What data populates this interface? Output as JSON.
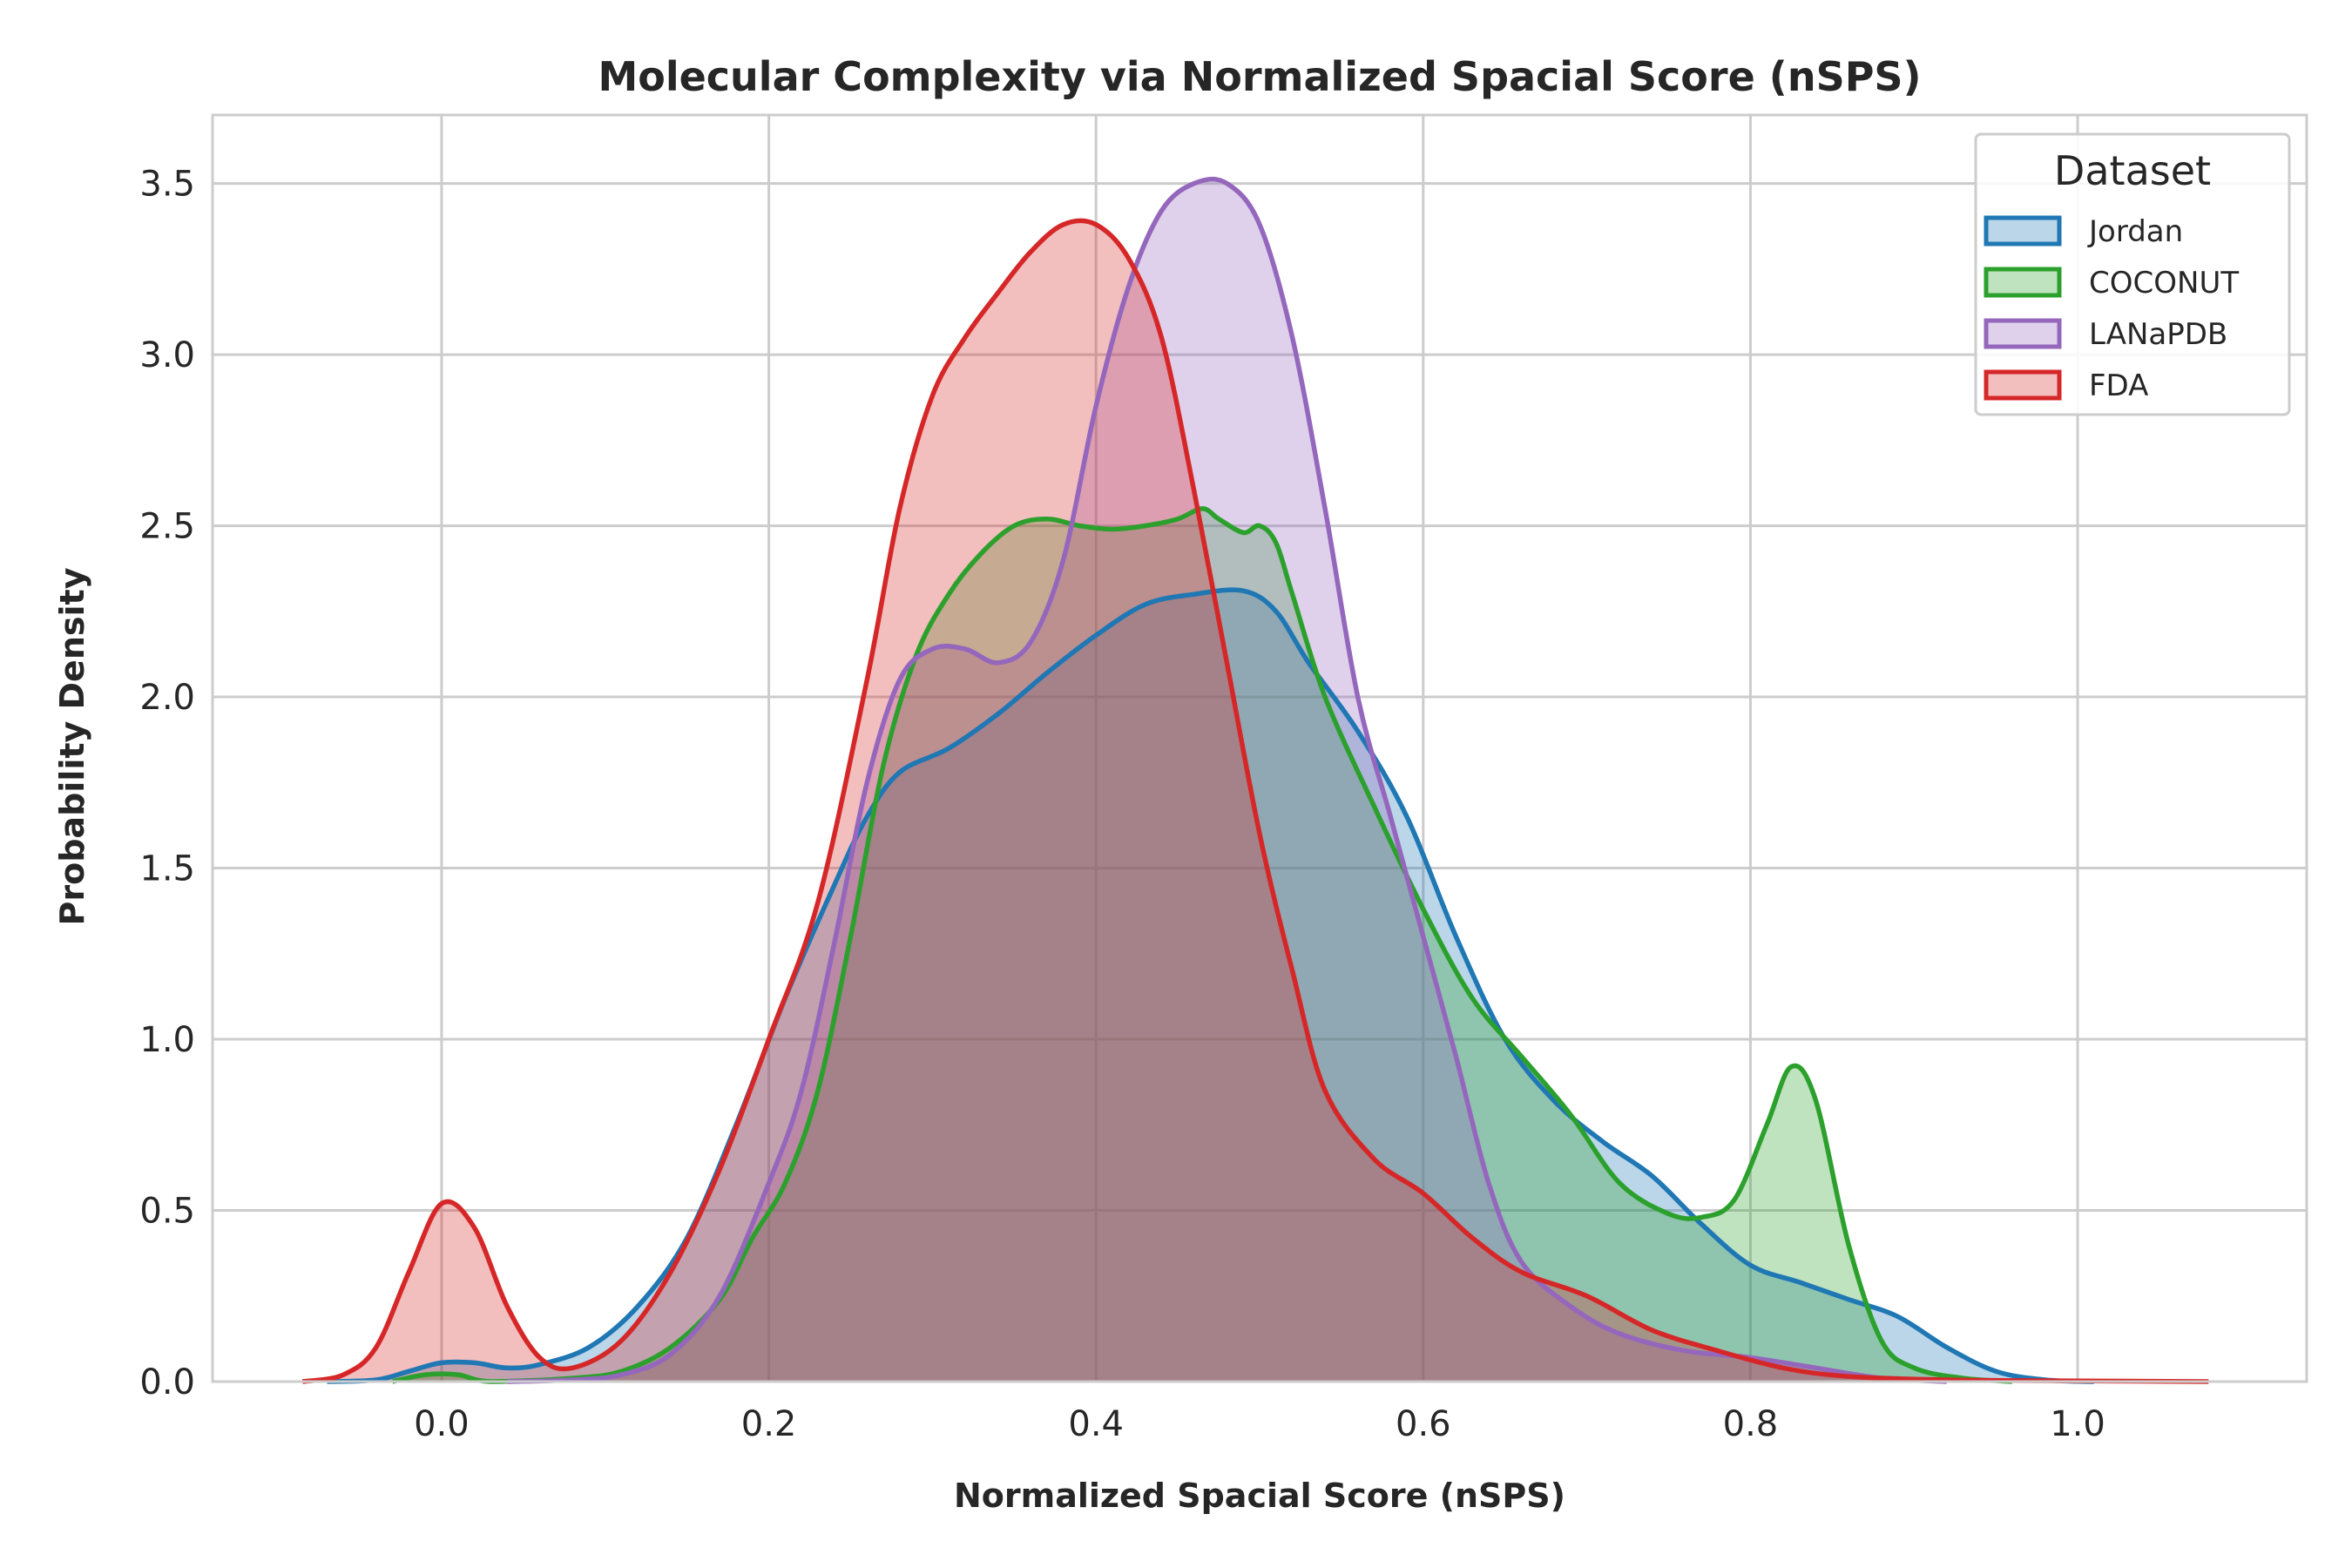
{
  "chart_data": {
    "type": "area",
    "title": "Molecular Complexity via Normalized Spacial Score (nSPS)",
    "xlabel": "Normalized Spacial Score (nSPS)",
    "ylabel": "Probability Density",
    "xlim": [
      -0.14,
      1.14
    ],
    "ylim": [
      0,
      3.7
    ],
    "xticks": [
      0.0,
      0.2,
      0.4,
      0.6,
      0.8,
      1.0
    ],
    "xtick_labels": [
      "0.0",
      "0.2",
      "0.4",
      "0.6",
      "0.8",
      "1.0"
    ],
    "yticks": [
      0.0,
      0.5,
      1.0,
      1.5,
      2.0,
      2.5,
      3.0,
      3.5
    ],
    "ytick_labels": [
      "0.0",
      "0.5",
      "1.0",
      "1.5",
      "2.0",
      "2.5",
      "3.0",
      "3.5"
    ],
    "grid": true,
    "legend_title": "Dataset",
    "legend_position": "top-right",
    "series": [
      {
        "name": "Jordan",
        "color": "#1f77b4",
        "points": [
          [
            -0.07,
            0
          ],
          [
            -0.04,
            0.005
          ],
          [
            -0.02,
            0.03
          ],
          [
            0.0,
            0.055
          ],
          [
            0.02,
            0.055
          ],
          [
            0.04,
            0.04
          ],
          [
            0.06,
            0.05
          ],
          [
            0.09,
            0.1
          ],
          [
            0.12,
            0.22
          ],
          [
            0.15,
            0.42
          ],
          [
            0.18,
            0.75
          ],
          [
            0.21,
            1.12
          ],
          [
            0.24,
            1.45
          ],
          [
            0.26,
            1.65
          ],
          [
            0.28,
            1.78
          ],
          [
            0.31,
            1.85
          ],
          [
            0.34,
            1.95
          ],
          [
            0.37,
            2.07
          ],
          [
            0.4,
            2.18
          ],
          [
            0.43,
            2.27
          ],
          [
            0.46,
            2.3
          ],
          [
            0.49,
            2.31
          ],
          [
            0.51,
            2.25
          ],
          [
            0.53,
            2.1
          ],
          [
            0.56,
            1.9
          ],
          [
            0.59,
            1.65
          ],
          [
            0.62,
            1.3
          ],
          [
            0.65,
            1.0
          ],
          [
            0.68,
            0.82
          ],
          [
            0.71,
            0.7
          ],
          [
            0.74,
            0.6
          ],
          [
            0.77,
            0.46
          ],
          [
            0.8,
            0.34
          ],
          [
            0.83,
            0.29
          ],
          [
            0.86,
            0.24
          ],
          [
            0.89,
            0.19
          ],
          [
            0.92,
            0.1
          ],
          [
            0.95,
            0.03
          ],
          [
            0.98,
            0.005
          ],
          [
            1.01,
            0
          ]
        ]
      },
      {
        "name": "COCONUT",
        "color": "#2ca02c",
        "points": [
          [
            -0.03,
            0
          ],
          [
            -0.01,
            0.02
          ],
          [
            0.01,
            0.02
          ],
          [
            0.03,
            0
          ],
          [
            0.08,
            0.01
          ],
          [
            0.11,
            0.03
          ],
          [
            0.14,
            0.1
          ],
          [
            0.17,
            0.24
          ],
          [
            0.19,
            0.42
          ],
          [
            0.21,
            0.58
          ],
          [
            0.23,
            0.85
          ],
          [
            0.25,
            1.3
          ],
          [
            0.27,
            1.8
          ],
          [
            0.29,
            2.12
          ],
          [
            0.31,
            2.3
          ],
          [
            0.33,
            2.42
          ],
          [
            0.35,
            2.5
          ],
          [
            0.37,
            2.52
          ],
          [
            0.39,
            2.5
          ],
          [
            0.41,
            2.49
          ],
          [
            0.43,
            2.5
          ],
          [
            0.45,
            2.52
          ],
          [
            0.465,
            2.55
          ],
          [
            0.475,
            2.52
          ],
          [
            0.49,
            2.48
          ],
          [
            0.5,
            2.5
          ],
          [
            0.51,
            2.45
          ],
          [
            0.52,
            2.3
          ],
          [
            0.54,
            2.0
          ],
          [
            0.57,
            1.68
          ],
          [
            0.6,
            1.38
          ],
          [
            0.63,
            1.12
          ],
          [
            0.66,
            0.95
          ],
          [
            0.69,
            0.78
          ],
          [
            0.72,
            0.58
          ],
          [
            0.75,
            0.49
          ],
          [
            0.77,
            0.48
          ],
          [
            0.79,
            0.53
          ],
          [
            0.81,
            0.75
          ],
          [
            0.825,
            0.92
          ],
          [
            0.84,
            0.82
          ],
          [
            0.86,
            0.4
          ],
          [
            0.88,
            0.12
          ],
          [
            0.9,
            0.04
          ],
          [
            0.93,
            0.01
          ],
          [
            0.96,
            0
          ]
        ]
      },
      {
        "name": "LANaPDB",
        "color": "#9467bd",
        "points": [
          [
            0.04,
            0
          ],
          [
            0.08,
            0.005
          ],
          [
            0.11,
            0.02
          ],
          [
            0.14,
            0.08
          ],
          [
            0.17,
            0.25
          ],
          [
            0.2,
            0.58
          ],
          [
            0.22,
            0.85
          ],
          [
            0.24,
            1.28
          ],
          [
            0.26,
            1.75
          ],
          [
            0.28,
            2.05
          ],
          [
            0.3,
            2.14
          ],
          [
            0.32,
            2.14
          ],
          [
            0.34,
            2.1
          ],
          [
            0.36,
            2.16
          ],
          [
            0.38,
            2.4
          ],
          [
            0.4,
            2.85
          ],
          [
            0.42,
            3.2
          ],
          [
            0.44,
            3.42
          ],
          [
            0.46,
            3.5
          ],
          [
            0.48,
            3.5
          ],
          [
            0.5,
            3.38
          ],
          [
            0.52,
            3.05
          ],
          [
            0.54,
            2.55
          ],
          [
            0.56,
            2.0
          ],
          [
            0.58,
            1.65
          ],
          [
            0.6,
            1.3
          ],
          [
            0.62,
            0.95
          ],
          [
            0.64,
            0.58
          ],
          [
            0.66,
            0.35
          ],
          [
            0.69,
            0.22
          ],
          [
            0.72,
            0.14
          ],
          [
            0.76,
            0.09
          ],
          [
            0.8,
            0.07
          ],
          [
            0.84,
            0.04
          ],
          [
            0.88,
            0.01
          ],
          [
            0.92,
            0
          ]
        ]
      },
      {
        "name": "FDA",
        "color": "#d62728",
        "points": [
          [
            -0.085,
            0
          ],
          [
            -0.06,
            0.02
          ],
          [
            -0.04,
            0.1
          ],
          [
            -0.02,
            0.32
          ],
          [
            0.0,
            0.52
          ],
          [
            0.02,
            0.45
          ],
          [
            0.04,
            0.22
          ],
          [
            0.06,
            0.07
          ],
          [
            0.08,
            0.04
          ],
          [
            0.11,
            0.12
          ],
          [
            0.14,
            0.32
          ],
          [
            0.17,
            0.62
          ],
          [
            0.2,
            1.0
          ],
          [
            0.23,
            1.4
          ],
          [
            0.26,
            2.05
          ],
          [
            0.28,
            2.55
          ],
          [
            0.3,
            2.88
          ],
          [
            0.32,
            3.05
          ],
          [
            0.34,
            3.18
          ],
          [
            0.36,
            3.3
          ],
          [
            0.38,
            3.38
          ],
          [
            0.4,
            3.38
          ],
          [
            0.42,
            3.28
          ],
          [
            0.44,
            3.05
          ],
          [
            0.46,
            2.6
          ],
          [
            0.48,
            2.1
          ],
          [
            0.5,
            1.6
          ],
          [
            0.52,
            1.2
          ],
          [
            0.54,
            0.85
          ],
          [
            0.57,
            0.65
          ],
          [
            0.6,
            0.55
          ],
          [
            0.63,
            0.42
          ],
          [
            0.66,
            0.32
          ],
          [
            0.7,
            0.25
          ],
          [
            0.74,
            0.15
          ],
          [
            0.78,
            0.09
          ],
          [
            0.82,
            0.04
          ],
          [
            0.86,
            0.015
          ],
          [
            0.92,
            0.005
          ],
          [
            1.0,
            0.002
          ],
          [
            1.08,
            0
          ]
        ]
      }
    ]
  }
}
